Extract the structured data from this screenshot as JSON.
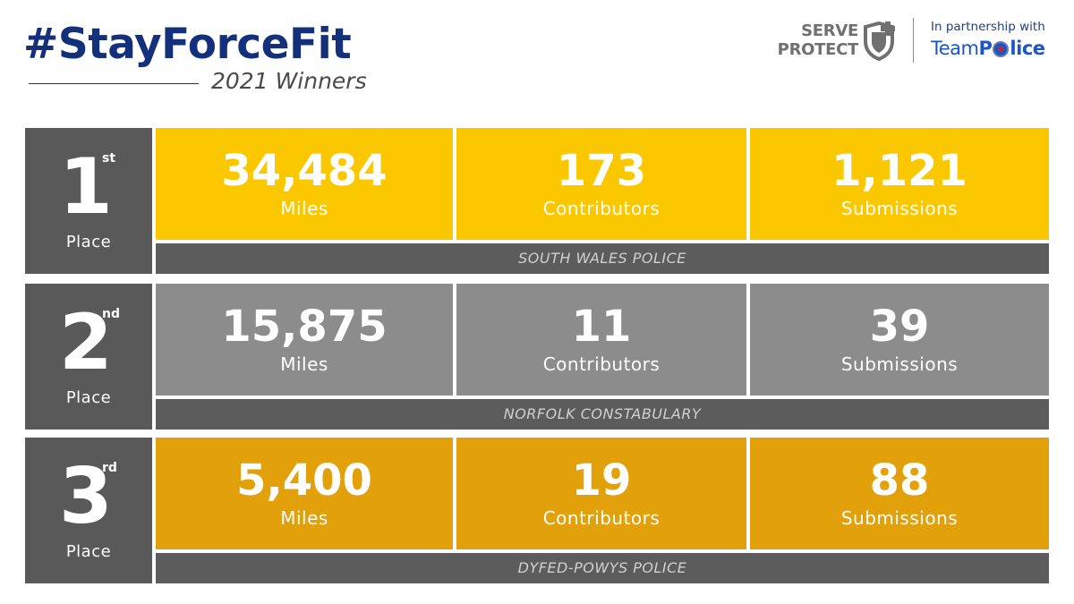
{
  "header": {
    "title": "#StayForceFit",
    "subtitle": "2021 Winners"
  },
  "logos": {
    "serve_line1": "SERVE",
    "serve_line2": "PROTECT",
    "partner_label": "In partnership with",
    "team_word": "Team",
    "police_p": "P",
    "police_rest": "lice",
    "serve_icon": "shield-plus-icon",
    "police_icon": "police-badge-icon"
  },
  "colors": {
    "title_blue": "#14307a",
    "gold": "#fbc800",
    "silver": "#8c8c8c",
    "bronze": "#e2a00b",
    "dark_grey": "#595959"
  },
  "places": [
    {
      "rank": "1",
      "suffix": "st",
      "label": "Place",
      "team": "SOUTH WALES POLICE",
      "stats": [
        {
          "value": "34,484",
          "label": "Miles"
        },
        {
          "value": "173",
          "label": "Contributors"
        },
        {
          "value": "1,121",
          "label": "Submissions"
        }
      ]
    },
    {
      "rank": "2",
      "suffix": "nd",
      "label": "Place",
      "team": "NORFOLK CONSTABULARY",
      "stats": [
        {
          "value": "15,875",
          "label": "Miles"
        },
        {
          "value": "11",
          "label": "Contributors"
        },
        {
          "value": "39",
          "label": "Submissions"
        }
      ]
    },
    {
      "rank": "3",
      "suffix": "rd",
      "label": "Place",
      "team": "DYFED-POWYS POLICE",
      "stats": [
        {
          "value": "5,400",
          "label": "Miles"
        },
        {
          "value": "19",
          "label": "Contributors"
        },
        {
          "value": "88",
          "label": "Submissions"
        }
      ]
    }
  ]
}
